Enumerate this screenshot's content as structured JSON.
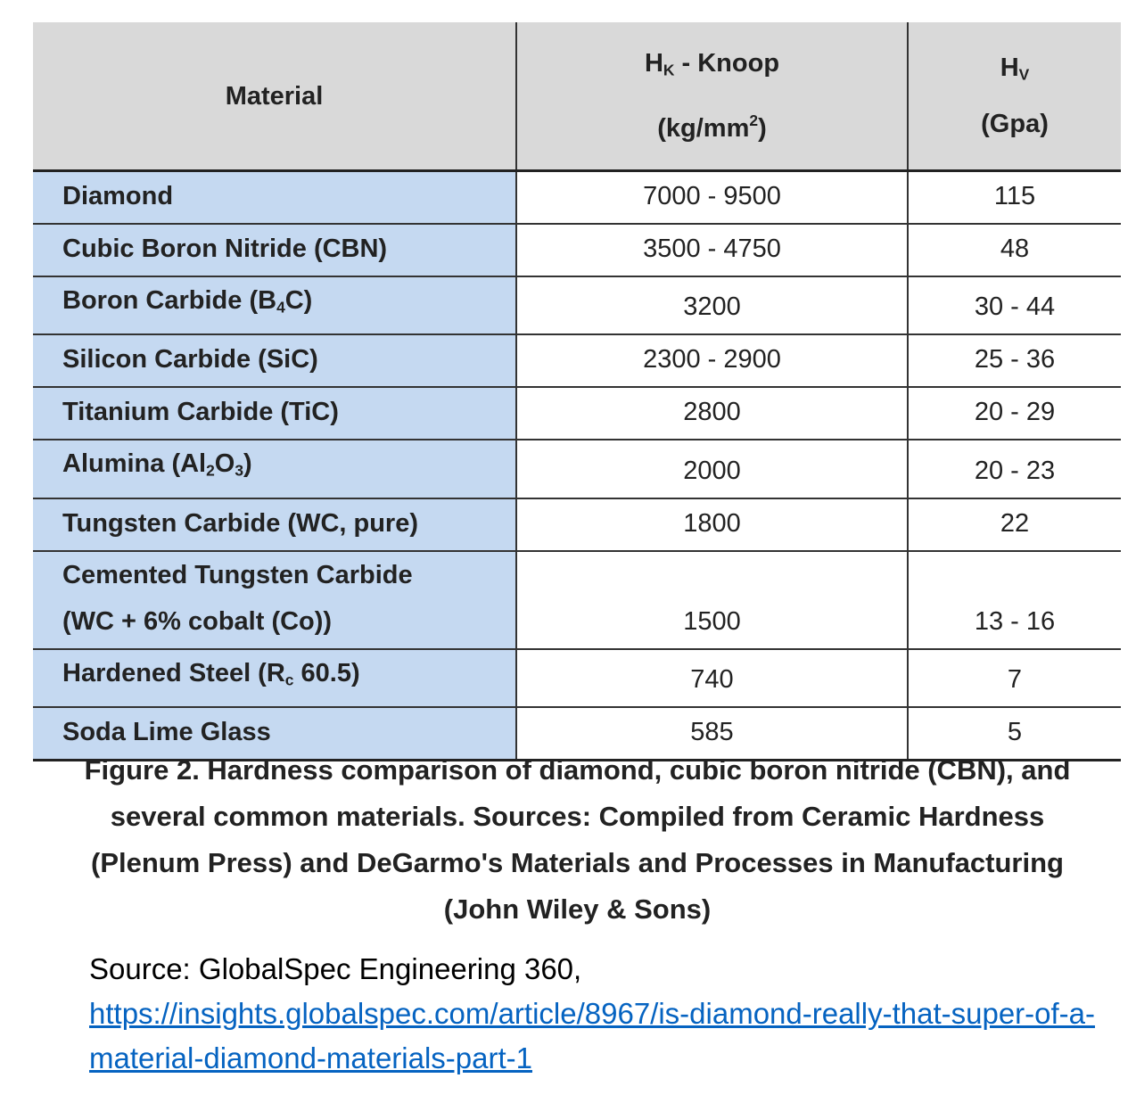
{
  "table": {
    "headers": [
      [
        [
          "Material"
        ]
      ],
      [
        [
          "H",
          {
            "sub": "K"
          },
          " - Knoop"
        ],
        [
          "(kg/mm",
          {
            "sup": "2"
          },
          ")"
        ]
      ],
      [
        [
          "H",
          {
            "sub": "V"
          }
        ],
        [
          "(Gpa)"
        ]
      ]
    ],
    "rows": [
      {
        "material": [
          [
            "Diamond"
          ]
        ],
        "knoop": "7000 - 9500",
        "hv": 115
      },
      {
        "material": [
          [
            "Cubic Boron Nitride (CBN)"
          ]
        ],
        "knoop": "3500 - 4750",
        "hv": 48
      },
      {
        "material": [
          [
            "Boron Carbide (B",
            {
              "sub": "4"
            },
            "C)"
          ]
        ],
        "knoop": 3200,
        "hv": "30 - 44"
      },
      {
        "material": [
          [
            "Silicon Carbide (SiC)"
          ]
        ],
        "knoop": "2300 - 2900",
        "hv": "25 - 36"
      },
      {
        "material": [
          [
            "Titanium Carbide (TiC)"
          ]
        ],
        "knoop": 2800,
        "hv": "20 - 29"
      },
      {
        "material": [
          [
            "Alumina (Al",
            {
              "sub": "2"
            },
            "O",
            {
              "sub": "3"
            },
            ")"
          ]
        ],
        "knoop": 2000,
        "hv": "20 - 23"
      },
      {
        "material": [
          [
            "Tungsten Carbide (WC, pure)"
          ]
        ],
        "knoop": 1800,
        "hv": 22
      },
      {
        "material": [
          [
            "Cemented Tungsten Carbide"
          ],
          [
            "(WC + 6% cobalt (Co))"
          ]
        ],
        "knoop": 1500,
        "hv": "13 - 16"
      },
      {
        "material": [
          [
            "Hardened Steel (R",
            {
              "sub": "c"
            },
            " 60.5)"
          ]
        ],
        "knoop": 740,
        "hv": 7
      },
      {
        "material": [
          [
            "Soda Lime Glass"
          ]
        ],
        "knoop": 585,
        "hv": 5
      }
    ]
  },
  "caption": "Figure 2. Hardness comparison of diamond, cubic boron nitride (CBN), and several common materials. Sources: Compiled from Ceramic Hardness (Plenum Press) and DeGarmo's Materials and Processes in Manufacturing (John Wiley & Sons)",
  "source": {
    "label": "Source: GlobalSpec Engineering 360,",
    "url": "https://insights.globalspec.com/article/8967/is-diamond-really-that-super-of-a-material-diamond-materials-part-1"
  }
}
